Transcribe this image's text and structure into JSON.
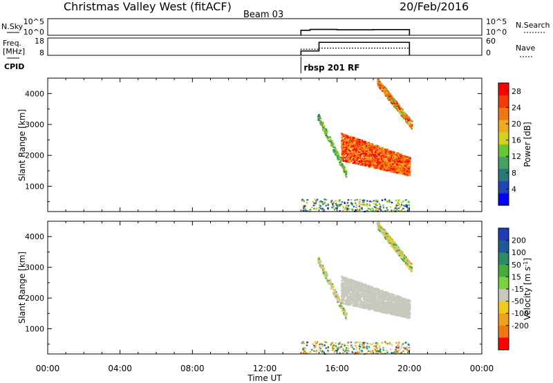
{
  "header": {
    "title": "Christmas Valley West (fitACF)",
    "beam": "Beam 03",
    "date": "20/Feb/2016"
  },
  "chart_data": [
    {
      "type": "line",
      "panel": "noise",
      "left_label": "N.Sky",
      "right_label": "N.Search",
      "left_ticks": [
        "10^5",
        "10^0"
      ],
      "right_ticks": [
        "10^5",
        "10^0"
      ],
      "x_range_hours": [
        0,
        24
      ],
      "series_step": [
        [
          14.0,
          0.3
        ],
        [
          14.5,
          0.35
        ],
        [
          16,
          0.33
        ],
        [
          18,
          0.34
        ],
        [
          20,
          0.3
        ]
      ]
    },
    {
      "type": "line",
      "panel": "frequency",
      "left_label_lines": [
        "Freq.",
        "[MHz]"
      ],
      "right_label": "Nave",
      "left_ticks": [
        18,
        8
      ],
      "left_range": [
        8,
        18
      ],
      "right_ticks": [
        60,
        0
      ],
      "right_range": [
        0,
        60
      ],
      "freq_steps": [
        [
          14.0,
          10.5
        ],
        [
          15.0,
          15.5
        ],
        [
          20.0,
          15.5
        ]
      ],
      "nave_steps": [
        [
          14.0,
          21
        ],
        [
          15.0,
          25
        ],
        [
          20.0,
          25
        ]
      ]
    },
    {
      "type": "annotation",
      "panel": "cpid",
      "label": "CPID",
      "marker_hour": 14.0,
      "text": "rbsp 201 RF"
    },
    {
      "type": "heatmap",
      "panel": "power",
      "xlabel": "",
      "ylabel": "Slant Range [km]",
      "y_range_km": [
        180,
        4500
      ],
      "y_ticks": [
        1000,
        2000,
        3000,
        4000
      ],
      "x_range_hours": [
        0,
        24
      ],
      "colorbar_label": "Power [dB]",
      "colorbar_ticks": [
        4,
        8,
        12,
        16,
        20,
        24,
        28
      ],
      "colorbar_range": [
        0,
        30
      ],
      "colors": [
        "#0000ff",
        "#1e46b4",
        "#287878",
        "#46a064",
        "#64c832",
        "#d2d21e",
        "#f0aa1e",
        "#f07814",
        "#f03c0a",
        "#ff0000"
      ]
    },
    {
      "type": "heatmap",
      "panel": "velocity",
      "xlabel": "Time UT",
      "ylabel": "Slant Range [km]",
      "y_range_km": [
        180,
        4500
      ],
      "y_ticks": [
        1000,
        2000,
        3000,
        4000
      ],
      "x_range_hours": [
        0,
        24
      ],
      "x_ticks": [
        "00:00",
        "04:00",
        "08:00",
        "12:00",
        "16:00",
        "20:00",
        "00:00"
      ],
      "colorbar_label": "Velocity [m s^-1]",
      "colorbar_ticks": [
        "200",
        "100",
        "50",
        "15",
        "-15",
        "-50",
        "-100",
        "-200"
      ],
      "colors": [
        "#1e3cb4",
        "#1e5a96",
        "#288c64",
        "#46aa3c",
        "#7ad23c",
        "#c8c8be",
        "#f0c81e",
        "#f0a01e",
        "#f07814",
        "#f03c0a",
        "#ff0000"
      ]
    }
  ]
}
